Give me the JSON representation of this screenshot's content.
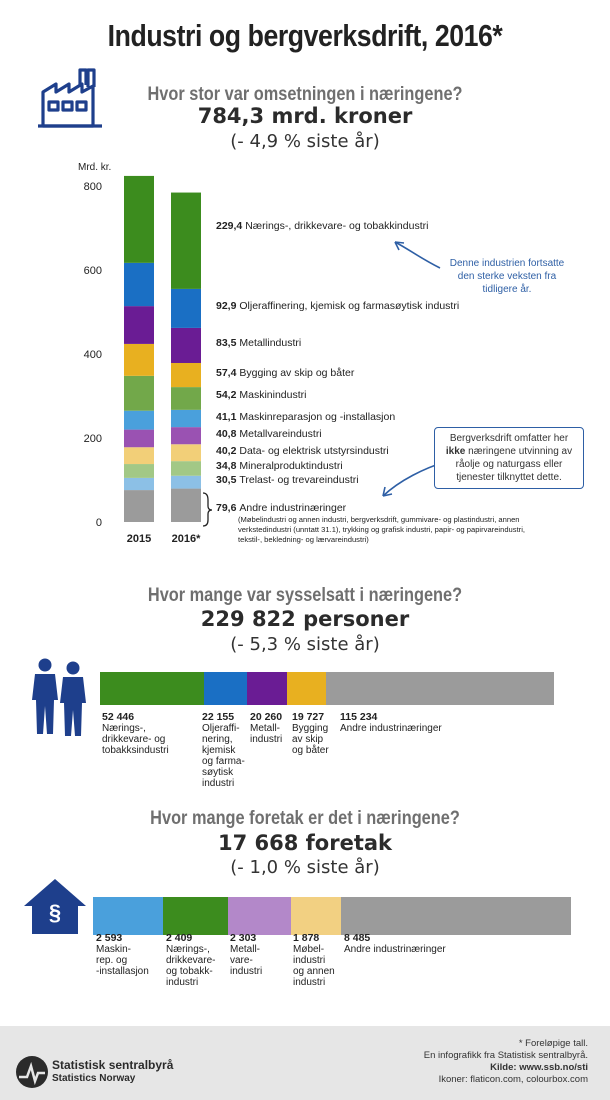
{
  "title": "Industri og bergverksdrift, 2016*",
  "turnover": {
    "question": "Hvor stor var omsetningen i næringene?",
    "headline": "784,3 mrd. kroner",
    "change": "(- 4,9 % siste år)"
  },
  "employment": {
    "question": "Hvor mange var sysselsatt i næringene?",
    "headline": "229 822 personer",
    "change": "(- 5,3 % siste år)"
  },
  "companies": {
    "question": "Hvor mange foretak er det i næringene?",
    "headline": "17 668 foretak",
    "change": "(- 1,0 % siste år)"
  },
  "colors": {
    "food": "#3c8c1e",
    "oil": "#1a6fc4",
    "metal": "#6a1c94",
    "ship": "#e8b020",
    "machine": "#72a84a",
    "repair": "#4aa0dc",
    "metalware": "#9a52b2",
    "electric": "#f2cf78",
    "mineral": "#a2c886",
    "wood": "#8cc0e6",
    "other": "#9b9b9b",
    "accent": "#2e5fa5",
    "icon": "#1e3f8c"
  },
  "chart_data": [
    {
      "type": "bar",
      "title": "Hvor stor var omsetningen i næringene?",
      "ylabel": "Mrd. kr.",
      "ylim": [
        0,
        800
      ],
      "yticks": [
        "0",
        "200",
        "400",
        "600",
        "800"
      ],
      "categories": [
        "2015",
        "2016*"
      ],
      "series": [
        {
          "name": "Andre industrinæringer",
          "values": [
            76.0,
            79.6
          ],
          "label": "79,6",
          "text": "Andre industrinæringer",
          "color": "#9b9b9b"
        },
        {
          "name": "Trelast- og trevareindustri",
          "values": [
            29.0,
            30.5
          ],
          "label": "30,5",
          "text": "Trelast- og trevareindustri",
          "color": "#8cc0e6"
        },
        {
          "name": "Mineralproduktindustri",
          "values": [
            33.0,
            34.8
          ],
          "label": "34,8",
          "text": "Mineralproduktindustri",
          "color": "#a2c886"
        },
        {
          "name": "Data- og elektrisk utstyrsindustri",
          "values": [
            40.0,
            40.2
          ],
          "label": "40,2",
          "text": "Data- og elektrisk utstyrsindustri",
          "color": "#f2cf78"
        },
        {
          "name": "Metallvareindustri",
          "values": [
            42.0,
            40.8
          ],
          "label": "40,8",
          "text": "Metallvareindustri",
          "color": "#9a52b2"
        },
        {
          "name": "Maskinreparasjon og -installasjon",
          "values": [
            45.0,
            41.1
          ],
          "label": "41,1",
          "text": "Maskinreparasjon og -installasjon",
          "color": "#4aa0dc"
        },
        {
          "name": "Maskinindustri",
          "values": [
            83.0,
            54.2
          ],
          "label": "54,2",
          "text": "Maskinindustri",
          "color": "#72a84a"
        },
        {
          "name": "Bygging av skip og båter",
          "values": [
            76.0,
            57.4
          ],
          "label": "57,4",
          "text": "Bygging av skip og båter",
          "color": "#e8b020"
        },
        {
          "name": "Metallindustri",
          "values": [
            90.0,
            83.5
          ],
          "label": "83,5",
          "text": "Metallindustri",
          "color": "#6a1c94"
        },
        {
          "name": "Oljeraffinering, kjemisk og farmasøytisk industri",
          "values": [
            103.0,
            92.9
          ],
          "label": "92,9",
          "text": "Oljeraffinering, kjemisk og farmasøytisk industri",
          "color": "#1a6fc4"
        },
        {
          "name": "Nærings-, drikkevare- og tobakkindustri",
          "values": [
            207.0,
            229.4
          ],
          "label": "229,4",
          "text": "Nærings-, drikkevare- og tobakkindustri",
          "color": "#3c8c1e"
        }
      ],
      "other_note": "(Møbelindustri og annen industri, bergverksdrift, gummivare- og plastindustri, annen verkstedindustri (unntatt 31.1), trykking og grafisk industri, papir- og papirvareindustri, tekstil-, bekledning- og lærvareindustri)",
      "callout_food": "Denne industrien fortsatte den sterke veksten fra tidligere år.",
      "callout_mining_1": "Bergverksdrift omfatter her",
      "callout_mining_bold": "ikke",
      "callout_mining_2": " næringene utvinning av råolje og naturgass eller tjenester tilknyttet dette."
    },
    {
      "type": "bar",
      "orientation": "horizontal-stacked",
      "title": "Hvor mange var sysselsatt i næringene?",
      "series": [
        {
          "name": "Nærings-, drikkevare- og tobakksindustri",
          "value": 52446,
          "label": "52 446",
          "lines": [
            "Nærings-,",
            "drikkevare- og",
            "tobakksindustri"
          ],
          "color": "#3c8c1e"
        },
        {
          "name": "Oljeraffinering, kjemisk og farmasøytisk industri",
          "value": 22155,
          "label": "22 155",
          "lines": [
            "Oljeraffi-",
            "nering,",
            "kjemisk",
            "og farma-",
            "søytisk",
            "industri"
          ],
          "color": "#1a6fc4"
        },
        {
          "name": "Metallindustri",
          "value": 20260,
          "label": "20 260",
          "lines": [
            "Metall-",
            "industri"
          ],
          "color": "#6a1c94"
        },
        {
          "name": "Bygging av skip og båter",
          "value": 19727,
          "label": "19 727",
          "lines": [
            "Bygging",
            "av skip",
            "og båter"
          ],
          "color": "#e8b020"
        },
        {
          "name": "Andre industrinæringer",
          "value": 115234,
          "label": "115 234",
          "lines": [
            "Andre industrinæringer"
          ],
          "color": "#9b9b9b"
        }
      ]
    },
    {
      "type": "bar",
      "orientation": "horizontal-stacked",
      "title": "Hvor mange foretak er det i næringene?",
      "series": [
        {
          "name": "Maskinreparasjon og -installasjon",
          "value": 2593,
          "label": "2 593",
          "lines": [
            "Maskin-",
            "rep. og",
            "-installasjon"
          ],
          "color": "#4aa0dc"
        },
        {
          "name": "Nærings-, drikkevare- og tobakksindustri",
          "value": 2409,
          "label": "2 409",
          "lines": [
            "Nærings-,",
            "drikkevare-",
            "og tobakk-",
            "industri"
          ],
          "color": "#3c8c1e"
        },
        {
          "name": "Metallvareindustri",
          "value": 2303,
          "label": "2 303",
          "lines": [
            "Metall-",
            "vare-",
            "industri"
          ],
          "color": "#b388c9"
        },
        {
          "name": "Møbelindustri og annen industri",
          "value": 1878,
          "label": "1 878",
          "lines": [
            "Møbel-",
            "industri",
            "og annen",
            "industri"
          ],
          "color": "#f2d082"
        },
        {
          "name": "Andre industrinæringer",
          "value": 8485,
          "label": "8 485",
          "lines": [
            "Andre industrinæringer"
          ],
          "color": "#9b9b9b"
        }
      ]
    }
  ],
  "footer": {
    "note": "* Foreløpige tall.",
    "credit": "En infografikk fra Statistisk sentralbyrå.",
    "source": "Kilde: www.ssb.no/sti",
    "icons": "Ikoner: flaticon.com, colourbox.com",
    "logo_name": "Statistisk sentralbyrå",
    "logo_name_en": "Statistics Norway"
  }
}
